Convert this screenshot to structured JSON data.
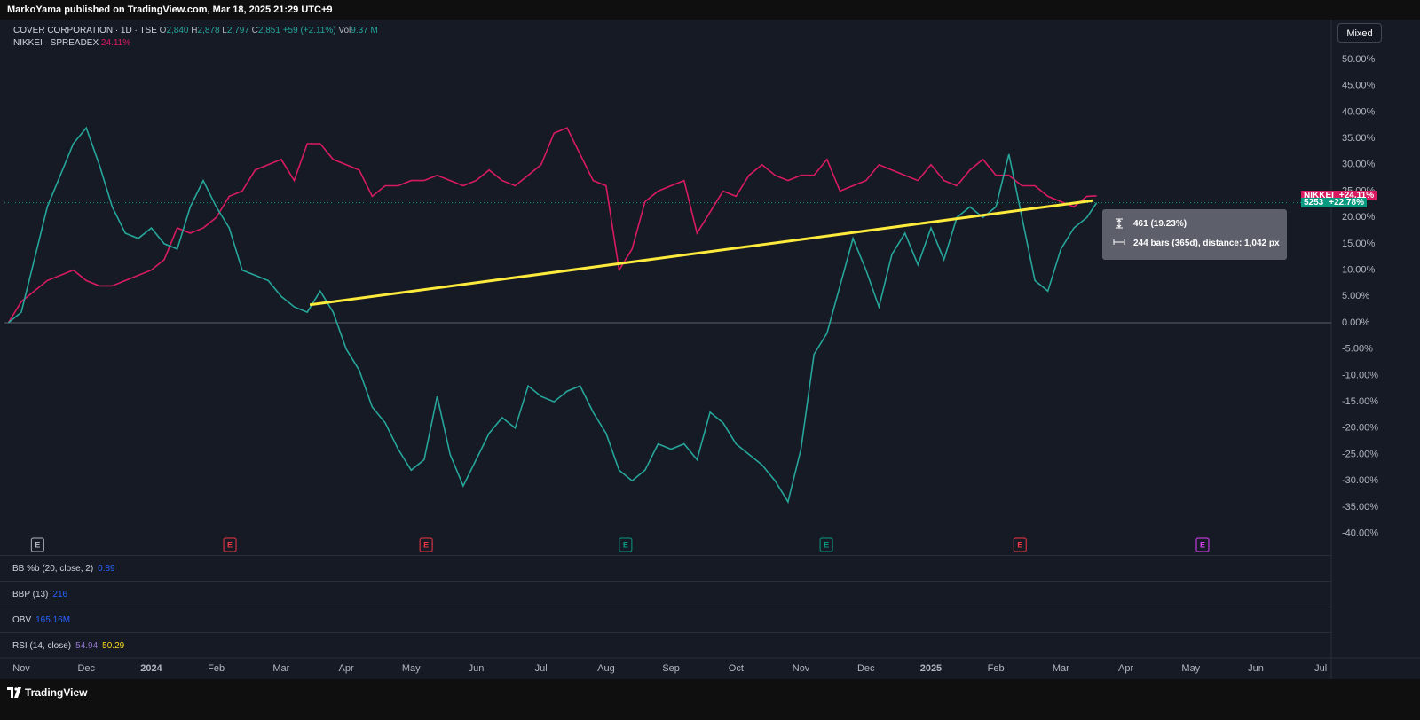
{
  "header": {
    "publisher": "MarkoYama published on TradingView.com, Mar 18, 2025 21:29 UTC+9"
  },
  "mode_button": "Mixed",
  "ohlc": {
    "O": "O",
    "open": "2,840",
    "H": "H",
    "high": "2,878",
    "L": "L",
    "low": "2,797",
    "C": "C",
    "close": "2,851",
    "change": "+59 (+2.11%)",
    "Vol": "Vol",
    "volume": "9.37 M"
  },
  "compare_value": "24.11%",
  "chart_data": {
    "type": "line",
    "x": [
      -0.2,
      0,
      0.2,
      0.4,
      0.6,
      0.8,
      1,
      1.2,
      1.4,
      1.6,
      1.8,
      2,
      2.2,
      2.4,
      2.6,
      2.8,
      3,
      3.2,
      3.4,
      3.6,
      3.8,
      4,
      4.2,
      4.4,
      4.6,
      4.8,
      5,
      5.2,
      5.4,
      5.6,
      5.8,
      6,
      6.2,
      6.4,
      6.6,
      6.8,
      7,
      7.2,
      7.4,
      7.6,
      7.8,
      8,
      8.2,
      8.4,
      8.6,
      8.8,
      9,
      9.2,
      9.4,
      9.6,
      9.8,
      10,
      10.2,
      10.4,
      10.6,
      10.8,
      11,
      11.2,
      11.4,
      11.6,
      11.8,
      12,
      12.2,
      12.4,
      12.6,
      12.8,
      13,
      13.2,
      13.4,
      13.6,
      13.8,
      14,
      14.2,
      14.4,
      14.6,
      14.8,
      15,
      15.2,
      15.4,
      15.6,
      15.8,
      16,
      16.2,
      16.4,
      16.55
    ],
    "series": [
      {
        "name": "COVER CORPORATION · 1D · TSE",
        "color": "#26a69a",
        "values": [
          0,
          2,
          12,
          22,
          28,
          34,
          37,
          30,
          22,
          17,
          16,
          18,
          15,
          14,
          22,
          27,
          22,
          18,
          10,
          9,
          8,
          5,
          3,
          2,
          6,
          2,
          -5,
          -9,
          -16,
          -19,
          -24,
          -28,
          -26,
          -14,
          -25,
          -31,
          -26,
          -21,
          -18,
          -20,
          -12,
          -14,
          -15,
          -13,
          -12,
          -17,
          -21,
          -28,
          -30,
          -28,
          -23,
          -24,
          -23,
          -26,
          -17,
          -19,
          -23,
          -25,
          -27,
          -30,
          -34,
          -24,
          -6,
          -2,
          7,
          16,
          10,
          3,
          13,
          17,
          11,
          18,
          12,
          20,
          22,
          20,
          22,
          32,
          20,
          8,
          6,
          14,
          18,
          20,
          22.78
        ]
      },
      {
        "name": "NIKKEI · SPREADEX",
        "color": "#d81b60",
        "values": [
          0,
          4,
          6,
          8,
          9,
          10,
          8,
          7,
          7,
          8,
          9,
          10,
          12,
          18,
          17,
          18,
          20,
          24,
          25,
          29,
          30,
          31,
          27,
          34,
          34,
          31,
          30,
          29,
          24,
          26,
          26,
          27,
          27,
          28,
          27,
          26,
          27,
          29,
          27,
          26,
          28,
          30,
          36,
          37,
          32,
          27,
          26,
          10,
          14,
          23,
          25,
          26,
          27,
          17,
          21,
          25,
          24,
          28,
          30,
          28,
          27,
          28,
          28,
          31,
          25,
          26,
          27,
          30,
          29,
          28,
          27,
          30,
          27,
          26,
          29,
          31,
          28,
          28,
          26,
          26,
          24,
          23,
          22,
          24,
          24.11
        ]
      }
    ],
    "xlim": [
      -0.26,
      20.12
    ],
    "xticks": [
      {
        "value": 0,
        "label": "Nov"
      },
      {
        "value": 1,
        "label": "Dec"
      },
      {
        "value": 2,
        "label": "2024"
      },
      {
        "value": 3,
        "label": "Feb"
      },
      {
        "value": 4,
        "label": "Mar"
      },
      {
        "value": 5,
        "label": "Apr"
      },
      {
        "value": 6,
        "label": "May"
      },
      {
        "value": 7,
        "label": "Jun"
      },
      {
        "value": 8,
        "label": "Jul"
      },
      {
        "value": 9,
        "label": "Aug"
      },
      {
        "value": 10,
        "label": "Sep"
      },
      {
        "value": 11,
        "label": "Oct"
      },
      {
        "value": 12,
        "label": "Nov"
      },
      {
        "value": 13,
        "label": "Dec"
      },
      {
        "value": 14,
        "label": "2025"
      },
      {
        "value": 15,
        "label": "Feb"
      },
      {
        "value": 16,
        "label": "Mar"
      },
      {
        "value": 17,
        "label": "Apr"
      },
      {
        "value": 18,
        "label": "May"
      },
      {
        "value": 19,
        "label": "Jun"
      },
      {
        "value": 20,
        "label": "Jul"
      }
    ],
    "ylim": [
      -41,
      57
    ],
    "yticks": [
      {
        "value": 50,
        "label": "50.00%"
      },
      {
        "value": 45,
        "label": "45.00%"
      },
      {
        "value": 40,
        "label": "40.00%"
      },
      {
        "value": 35,
        "label": "35.00%"
      },
      {
        "value": 30,
        "label": "30.00%"
      },
      {
        "value": 25,
        "label": "25.00%"
      },
      {
        "value": 20,
        "label": "20.00%"
      },
      {
        "value": 15,
        "label": "15.00%"
      },
      {
        "value": 10,
        "label": "10.00%"
      },
      {
        "value": 5,
        "label": "5.00%"
      },
      {
        "value": 0,
        "label": "0.00%"
      },
      {
        "value": -5,
        "label": "-5.00%"
      },
      {
        "value": -10,
        "label": "-10.00%"
      },
      {
        "value": -15,
        "label": "-15.00%"
      },
      {
        "value": -20,
        "label": "-20.00%"
      },
      {
        "value": -25,
        "label": "-25.00%"
      },
      {
        "value": -30,
        "label": "-30.00%"
      },
      {
        "value": -35,
        "label": "-35.00%"
      },
      {
        "value": -40,
        "label": "-40.00%"
      }
    ],
    "grid": false,
    "trend_line": {
      "x": [
        4.44,
        16.5
      ],
      "y": [
        3.4,
        23.2
      ],
      "color": "#ffeb3b"
    },
    "price_tags": [
      {
        "name": "NIKKEI",
        "change": "+24.11%",
        "value": 24.11,
        "color": "#d81b60"
      },
      {
        "name": "5253",
        "change": "+22.78%",
        "value": 22.78,
        "color": "#089981"
      }
    ],
    "earnings": [
      {
        "label": "E",
        "x": 0.25,
        "color": "#b2b5be"
      },
      {
        "label": "E",
        "x": 3.21,
        "color": "#f23645"
      },
      {
        "label": "E",
        "x": 6.23,
        "color": "#f23645"
      },
      {
        "label": "E",
        "x": 9.3,
        "color": "#089981"
      },
      {
        "label": "E",
        "x": 12.39,
        "color": "#089981"
      },
      {
        "label": "E",
        "x": 15.37,
        "color": "#f23645"
      },
      {
        "label": "E",
        "x": 18.18,
        "color": "#e040fb"
      }
    ],
    "measure": {
      "range": "461 (19.23%)",
      "bars": "244 bars (365d), distance: 1,042 px"
    }
  },
  "panes": [
    {
      "title": "BB %b (20, close, 2)",
      "value": "0.89"
    },
    {
      "title": "BBP (13)",
      "value": "216"
    },
    {
      "title": "OBV",
      "value": "165.16M"
    },
    {
      "title": "RSI (14, close)",
      "value": "54.94",
      "value2": "50.29"
    }
  ],
  "footer": {
    "brand": "TradingView"
  }
}
